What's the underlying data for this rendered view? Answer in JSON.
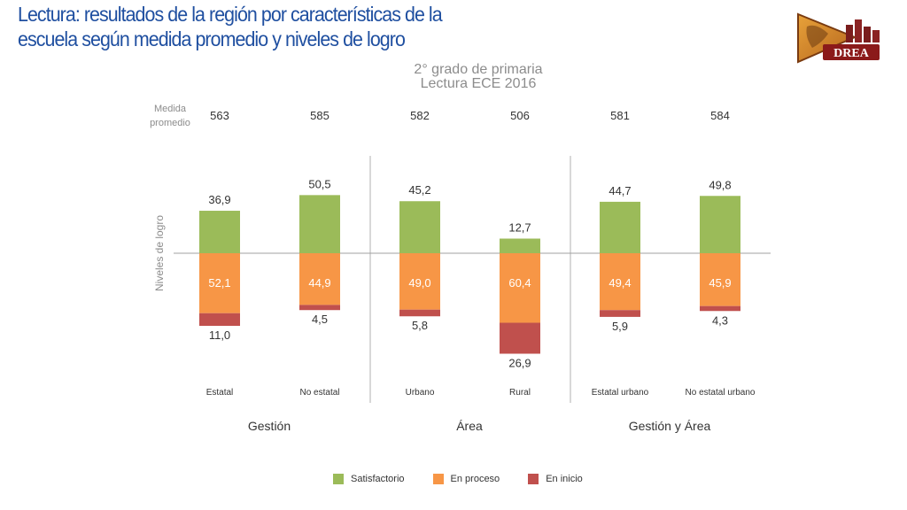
{
  "header": {
    "title_line1": "Lectura: resultados de la región por características de la",
    "title_line2": "escuela según medida promedio y niveles de   logro",
    "subtitle_line1": "2° grado de primaria",
    "subtitle_line2": "Lectura ECE 2016",
    "logo_text": "DREA"
  },
  "colors": {
    "satisfactorio": "#9bbb59",
    "proceso": "#f79646",
    "inicio": "#c0504d",
    "title": "#1f4fa0"
  },
  "chart_data": {
    "type": "bar",
    "title": "Lectura ECE 2016",
    "ylabel": "Niveles de logro",
    "medida_label_line1": "Medida",
    "medida_label_line2": "promedio",
    "categories": [
      "Estatal",
      "No estatal",
      "Urbano",
      "Rural",
      "Estatal urbano",
      "No estatal urbano"
    ],
    "medida_promedio": [
      "563",
      "585",
      "582",
      "506",
      "581",
      "584"
    ],
    "series": [
      {
        "name": "Satisfactorio",
        "values": [
          36.9,
          50.5,
          45.2,
          12.7,
          44.7,
          49.8
        ],
        "labels": [
          "36,9",
          "50,5",
          "45,2",
          "12,7",
          "44,7",
          "49,8"
        ]
      },
      {
        "name": "En proceso",
        "values": [
          52.1,
          44.9,
          49.0,
          60.4,
          49.4,
          45.9
        ],
        "labels": [
          "52,1",
          "44,9",
          "49,0",
          "60,4",
          "49,4",
          "45,9"
        ]
      },
      {
        "name": "En inicio",
        "values": [
          11.0,
          4.5,
          5.8,
          26.9,
          5.9,
          4.3
        ],
        "labels": [
          "11,0",
          "4,5",
          "5,8",
          "26,9",
          "5,9",
          "4,3"
        ]
      }
    ],
    "groups": [
      {
        "label": "Gestión",
        "categories": [
          "Estatal",
          "No estatal"
        ]
      },
      {
        "label": "Área",
        "categories": [
          "Urbano",
          "Rural"
        ]
      },
      {
        "label": "Gestión y Área",
        "categories": [
          "Estatal urbano",
          "No estatal urbano"
        ]
      }
    ]
  },
  "legend": {
    "items": [
      "Satisfactorio",
      "En proceso",
      "En inicio"
    ]
  }
}
